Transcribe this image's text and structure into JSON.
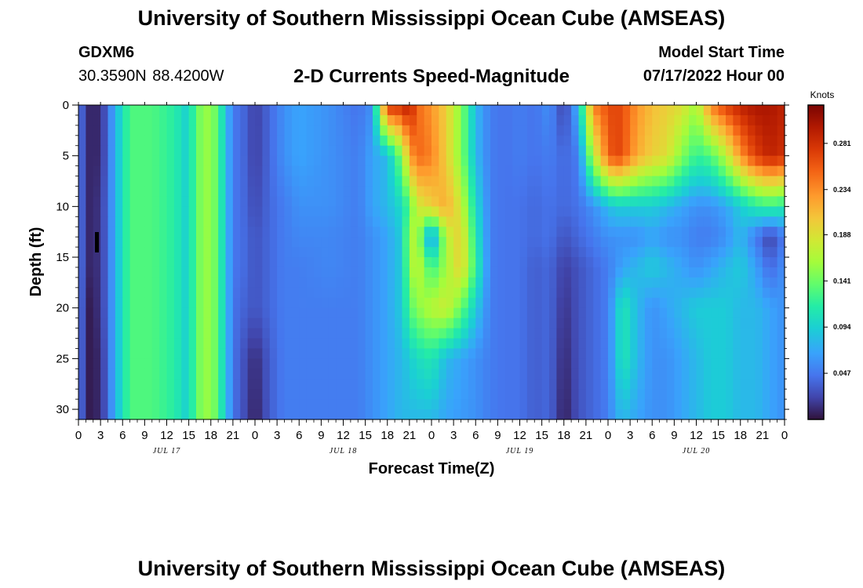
{
  "header": {
    "title": "University of Southern Mississippi Ocean Cube (AMSEAS)",
    "station_id": "GDXM6",
    "coordinates": "30.3590N  88.4200W",
    "plot_title": "2-D Currents Speed-Magnitude",
    "start_label": "Model Start Time",
    "start_value": "07/17/2022 Hour 00"
  },
  "footer": {
    "title": "University of Southern Mississippi Ocean Cube (AMSEAS)"
  },
  "chart_data": {
    "type": "heatmap",
    "title": "2-D Currents Speed-Magnitude",
    "xlabel": "Forecast Time(Z)",
    "ylabel": "Depth (ft)",
    "x_range_hours": [
      0,
      96
    ],
    "x_tick_labels": [
      "0",
      "3",
      "6",
      "9",
      "12",
      "15",
      "18",
      "21",
      "0",
      "3",
      "6",
      "9",
      "12",
      "15",
      "18",
      "21",
      "0",
      "3",
      "6",
      "9",
      "12",
      "15",
      "18",
      "21",
      "0",
      "3",
      "6",
      "9",
      "12",
      "15",
      "18",
      "21",
      "0"
    ],
    "day_labels": [
      "JUL 17",
      "JUL 18",
      "JUL 19",
      "JUL 20"
    ],
    "y_ticks": [
      0,
      5,
      10,
      15,
      20,
      25,
      30
    ],
    "ylim": [
      0,
      31
    ],
    "colorbar": {
      "unit": "Knots",
      "range": [
        0,
        0.32
      ],
      "ticks": [
        "0.047",
        "0.094",
        "0.141",
        "0.188",
        "0.234",
        "0.281"
      ]
    },
    "columns_hours": [
      0,
      1.5,
      3,
      4.5,
      5.5,
      7,
      10,
      13,
      15,
      16,
      18,
      20,
      21,
      22,
      24,
      26,
      28,
      30,
      34,
      38,
      40,
      42,
      44,
      45,
      46,
      48,
      50,
      52,
      54,
      56,
      58,
      60,
      62,
      64,
      66,
      68,
      70,
      72,
      73,
      74,
      76,
      78,
      80,
      82,
      84,
      86,
      88,
      90,
      92,
      94,
      96
    ],
    "depth_levels_ft": [
      0,
      5,
      10,
      13,
      16,
      20,
      25,
      31
    ],
    "speed_knots_by_depth": [
      [
        0.047,
        0.01,
        0.01,
        0.06,
        0.09,
        0.13,
        0.13,
        0.115,
        0.09,
        0.14,
        0.16,
        0.09,
        0.045,
        0.045,
        0.02,
        0.04,
        0.06,
        0.07,
        0.06,
        0.045,
        0.06,
        0.28,
        0.28,
        0.3,
        0.25,
        0.23,
        0.2,
        0.15,
        0.08,
        0.05,
        0.045,
        0.05,
        0.045,
        0.06,
        0.02,
        0.08,
        0.24,
        0.26,
        0.27,
        0.26,
        0.23,
        0.21,
        0.2,
        0.19,
        0.16,
        0.24,
        0.27,
        0.29,
        0.3,
        0.3,
        0.29
      ],
      [
        0.047,
        0.01,
        0.01,
        0.06,
        0.09,
        0.13,
        0.13,
        0.115,
        0.09,
        0.14,
        0.16,
        0.09,
        0.045,
        0.045,
        0.02,
        0.04,
        0.06,
        0.07,
        0.06,
        0.05,
        0.07,
        0.08,
        0.15,
        0.22,
        0.25,
        0.24,
        0.2,
        0.15,
        0.08,
        0.05,
        0.045,
        0.05,
        0.045,
        0.05,
        0.04,
        0.05,
        0.17,
        0.25,
        0.27,
        0.26,
        0.22,
        0.2,
        0.19,
        0.15,
        0.12,
        0.13,
        0.17,
        0.23,
        0.27,
        0.29,
        0.28
      ],
      [
        0.047,
        0.01,
        0.015,
        0.06,
        0.09,
        0.13,
        0.13,
        0.115,
        0.09,
        0.14,
        0.16,
        0.09,
        0.045,
        0.045,
        0.025,
        0.04,
        0.05,
        0.06,
        0.06,
        0.05,
        0.07,
        0.08,
        0.1,
        0.13,
        0.18,
        0.2,
        0.22,
        0.18,
        0.1,
        0.05,
        0.045,
        0.045,
        0.04,
        0.045,
        0.04,
        0.045,
        0.06,
        0.08,
        0.09,
        0.09,
        0.09,
        0.09,
        0.08,
        0.07,
        0.06,
        0.06,
        0.07,
        0.09,
        0.11,
        0.12,
        0.11
      ],
      [
        0.047,
        0.01,
        0.015,
        0.06,
        0.09,
        0.13,
        0.13,
        0.115,
        0.09,
        0.14,
        0.16,
        0.09,
        0.045,
        0.045,
        0.03,
        0.04,
        0.05,
        0.055,
        0.055,
        0.05,
        0.06,
        0.07,
        0.09,
        0.16,
        0.17,
        0.05,
        0.17,
        0.2,
        0.11,
        0.05,
        0.045,
        0.045,
        0.04,
        0.045,
        0.03,
        0.04,
        0.05,
        0.06,
        0.06,
        0.06,
        0.06,
        0.07,
        0.06,
        0.06,
        0.05,
        0.05,
        0.06,
        0.08,
        0.05,
        0.02,
        0.05
      ],
      [
        0.047,
        0.01,
        0.015,
        0.06,
        0.09,
        0.13,
        0.13,
        0.115,
        0.09,
        0.14,
        0.16,
        0.09,
        0.045,
        0.045,
        0.03,
        0.04,
        0.05,
        0.05,
        0.055,
        0.05,
        0.06,
        0.07,
        0.09,
        0.15,
        0.18,
        0.12,
        0.16,
        0.2,
        0.12,
        0.05,
        0.045,
        0.045,
        0.035,
        0.04,
        0.02,
        0.03,
        0.04,
        0.05,
        0.06,
        0.07,
        0.08,
        0.09,
        0.08,
        0.07,
        0.06,
        0.07,
        0.08,
        0.09,
        0.07,
        0.04,
        0.06
      ],
      [
        0.047,
        0.005,
        0.015,
        0.06,
        0.09,
        0.13,
        0.13,
        0.115,
        0.09,
        0.14,
        0.16,
        0.09,
        0.045,
        0.04,
        0.03,
        0.04,
        0.05,
        0.05,
        0.05,
        0.05,
        0.06,
        0.07,
        0.09,
        0.13,
        0.15,
        0.17,
        0.18,
        0.14,
        0.09,
        0.05,
        0.045,
        0.045,
        0.035,
        0.04,
        0.015,
        0.03,
        0.04,
        0.05,
        0.08,
        0.11,
        0.08,
        0.06,
        0.07,
        0.08,
        0.09,
        0.09,
        0.09,
        0.08,
        0.08,
        0.07,
        0.06
      ],
      [
        0.047,
        0.005,
        0.01,
        0.06,
        0.09,
        0.13,
        0.13,
        0.115,
        0.09,
        0.14,
        0.16,
        0.09,
        0.045,
        0.035,
        0.01,
        0.035,
        0.05,
        0.05,
        0.05,
        0.05,
        0.06,
        0.07,
        0.08,
        0.09,
        0.1,
        0.11,
        0.08,
        0.07,
        0.06,
        0.05,
        0.045,
        0.045,
        0.035,
        0.04,
        0.01,
        0.03,
        0.04,
        0.05,
        0.08,
        0.11,
        0.08,
        0.06,
        0.06,
        0.07,
        0.08,
        0.09,
        0.09,
        0.08,
        0.08,
        0.07,
        0.06
      ],
      [
        0.047,
        0.005,
        0.01,
        0.06,
        0.09,
        0.13,
        0.13,
        0.115,
        0.09,
        0.14,
        0.16,
        0.09,
        0.045,
        0.035,
        0.005,
        0.035,
        0.05,
        0.05,
        0.05,
        0.05,
        0.06,
        0.07,
        0.08,
        0.08,
        0.08,
        0.08,
        0.07,
        0.065,
        0.06,
        0.05,
        0.045,
        0.045,
        0.035,
        0.04,
        0.005,
        0.03,
        0.04,
        0.05,
        0.07,
        0.08,
        0.07,
        0.06,
        0.06,
        0.07,
        0.08,
        0.09,
        0.09,
        0.08,
        0.08,
        0.07,
        0.06
      ]
    ]
  }
}
